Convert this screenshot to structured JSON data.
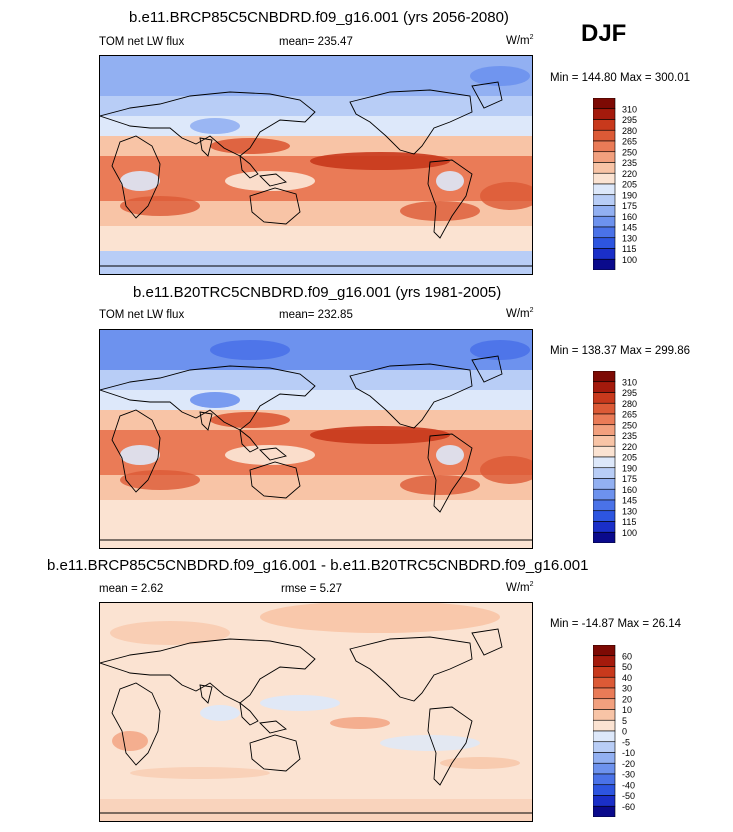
{
  "season": "DJF",
  "panels": [
    {
      "title": "b.e11.BRCP85C5CNBDRD.f09_g16.001 (yrs 2056-2080)",
      "left_label": "TOM net LW flux",
      "center_label": "mean= 235.47",
      "units": "W/m",
      "units_sup": "2",
      "minmax": "Min = 144.80 Max = 300.01",
      "levels": [
        "310",
        "295",
        "280",
        "265",
        "250",
        "235",
        "220",
        "205",
        "190",
        "175",
        "160",
        "145",
        "130",
        "115",
        "100"
      ]
    },
    {
      "title": "b.e11.B20TRC5CNBDRD.f09_g16.001 (yrs 1981-2005)",
      "left_label": "TOM net LW flux",
      "center_label": "mean= 232.85",
      "units": "W/m",
      "units_sup": "2",
      "minmax": "Min = 138.37 Max = 299.86",
      "levels": [
        "310",
        "295",
        "280",
        "265",
        "250",
        "235",
        "220",
        "205",
        "190",
        "175",
        "160",
        "145",
        "130",
        "115",
        "100"
      ]
    },
    {
      "title": "b.e11.BRCP85C5CNBDRD.f09_g16.001 - b.e11.B20TRC5CNBDRD.f09_g16.001",
      "left_label": "mean =   2.62",
      "center_label": "rmse =   5.27",
      "units": "W/m",
      "units_sup": "2",
      "minmax": "Min = -14.87 Max =  26.14",
      "levels": [
        "60",
        "50",
        "40",
        "30",
        "20",
        "10",
        "5",
        "0",
        "-5",
        "-10",
        "-20",
        "-30",
        "-40",
        "-50",
        "-60"
      ]
    }
  ],
  "chart_data": [
    {
      "type": "heatmap",
      "title": "b.e11.BRCP85C5CNBDRD.f09_g16.001 (yrs 2056-2080)",
      "variable": "TOM net LW flux",
      "units": "W/m2",
      "mean": 235.47,
      "min": 144.8,
      "max": 300.01,
      "contour_levels": [
        100,
        115,
        130,
        145,
        160,
        175,
        190,
        205,
        220,
        235,
        250,
        265,
        280,
        295,
        310
      ]
    },
    {
      "type": "heatmap",
      "title": "b.e11.B20TRC5CNBDRD.f09_g16.001 (yrs 1981-2005)",
      "variable": "TOM net LW flux",
      "units": "W/m2",
      "mean": 232.85,
      "min": 138.37,
      "max": 299.86,
      "contour_levels": [
        100,
        115,
        130,
        145,
        160,
        175,
        190,
        205,
        220,
        235,
        250,
        265,
        280,
        295,
        310
      ]
    },
    {
      "type": "heatmap",
      "title": "b.e11.BRCP85C5CNBDRD.f09_g16.001 - b.e11.B20TRC5CNBDRD.f09_g16.001",
      "variable": "difference",
      "units": "W/m2",
      "mean": 2.62,
      "rmse": 5.27,
      "min": -14.87,
      "max": 26.14,
      "contour_levels": [
        -60,
        -50,
        -40,
        -30,
        -20,
        -10,
        -5,
        0,
        5,
        10,
        20,
        30,
        40,
        50,
        60
      ]
    }
  ],
  "colors": {
    "palette": [
      "#0a0a8c",
      "#1a2fc8",
      "#2d55e0",
      "#4a72e8",
      "#6d92ee",
      "#92b0f2",
      "#b8cdf6",
      "#dde8fa",
      "#fbe3d2",
      "#f8c4a6",
      "#f2a07e",
      "#ea7b57",
      "#dc5a36",
      "#c8391c",
      "#a41a0c",
      "#7d0a04"
    ]
  }
}
